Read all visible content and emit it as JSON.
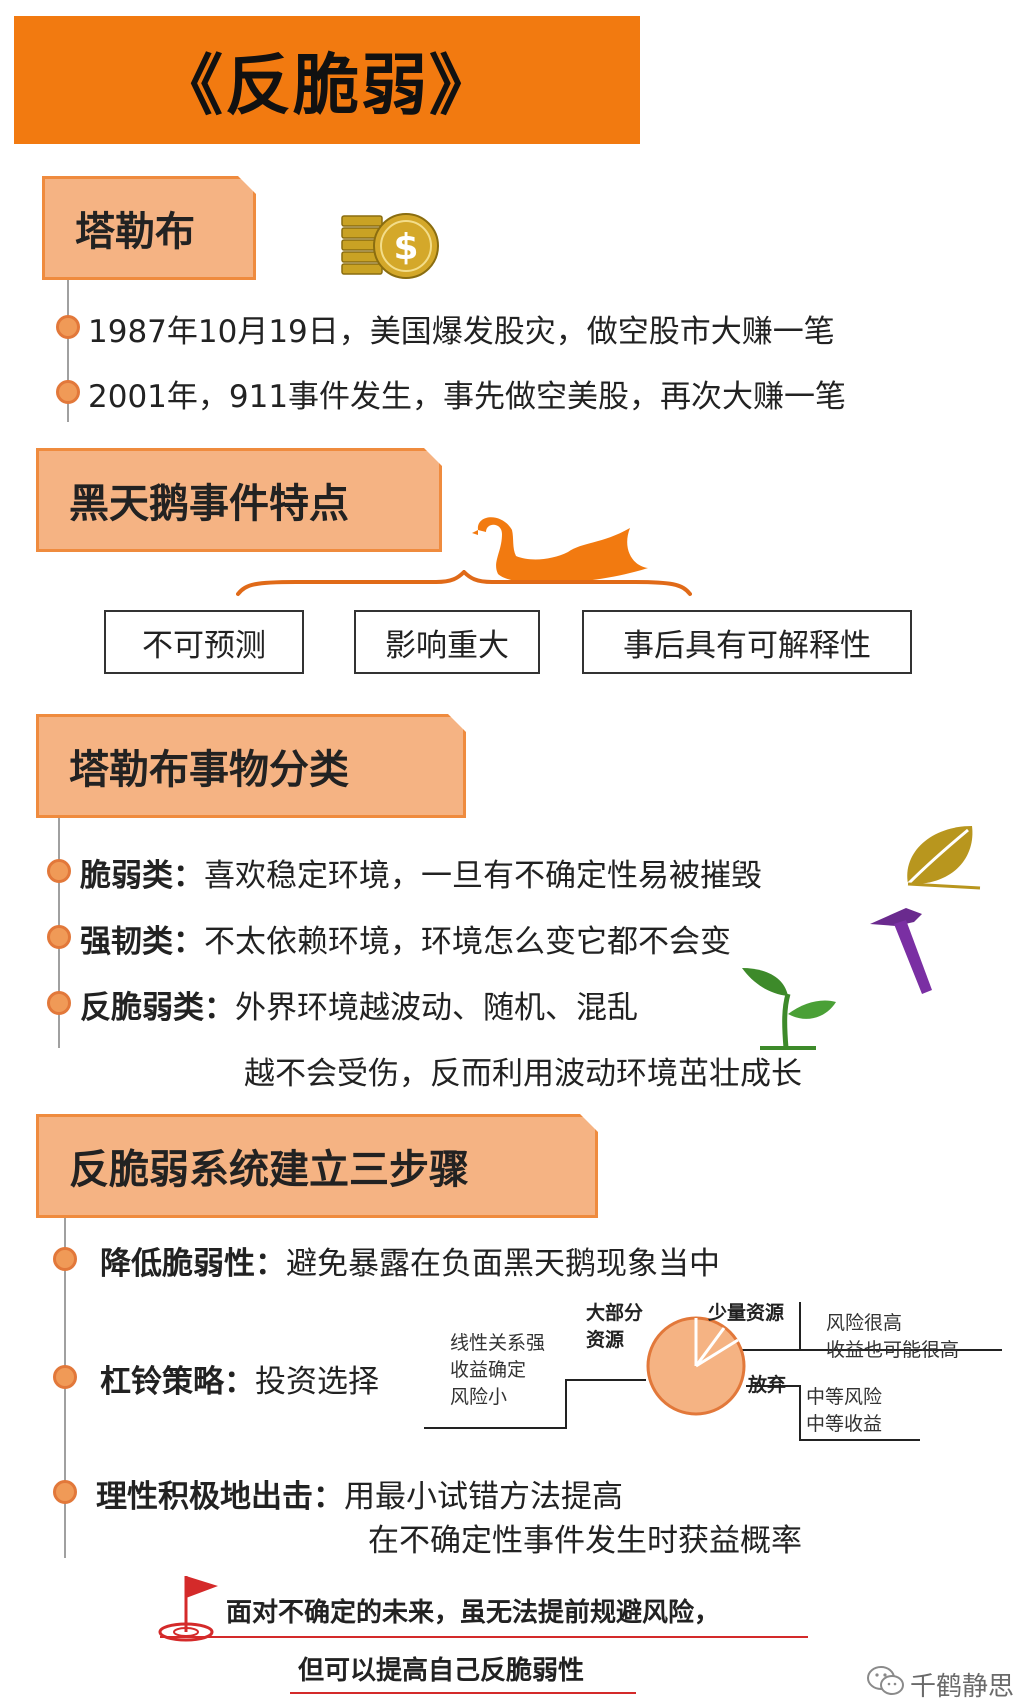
{
  "title": "《反脆弱》",
  "section1": {
    "header": "塔勒布",
    "items": [
      "1987年10月19日，美国爆发股灾，做空股市大赚一笔",
      "2001年，911事件发生，事先做空美股，再次大赚一笔"
    ]
  },
  "section2": {
    "header": "黑天鹅事件特点",
    "boxes": [
      "不可预测",
      "影响重大",
      "事后具有可解释性"
    ]
  },
  "section3": {
    "header": "塔勒布事物分类",
    "items": [
      {
        "label": "脆弱类：",
        "text": "喜欢稳定环境，一旦有不确定性易被摧毁"
      },
      {
        "label": "强韧类：",
        "text": "不太依赖环境，环境怎么变它都不会变"
      },
      {
        "label": "反脆弱类：",
        "text": "外界环境越波动、随机、混乱",
        "text2": "越不会受伤，反而利用波动环境茁壮成长"
      }
    ]
  },
  "section4": {
    "header": "反脆弱系统建立三步骤",
    "step1": {
      "label": "降低脆弱性：",
      "text": "避免暴露在负面黑天鹅现象当中"
    },
    "step2": {
      "label": "杠铃策略：",
      "text": "投资选择",
      "diagram": {
        "left_note": [
          "线性关系强",
          "收益确定",
          "风险小"
        ],
        "major": [
          "大部分",
          "资源"
        ],
        "minor": "少量资源",
        "abandon": "放弃",
        "high_note": [
          "风险很高",
          "收益也可能很高"
        ],
        "mid_note": [
          "中等风险",
          "中等收益"
        ]
      }
    },
    "step3": {
      "label": "理性积极地出击：",
      "text": "用最小试错方法提高",
      "text2": "在不确定性事件发生时获益概率"
    }
  },
  "footer": {
    "line1": "面对不确定的未来，虽无法提前规避风险，",
    "line2": "但可以提高自己反脆弱性"
  },
  "watermark": "千鹤静思",
  "colors": {
    "banner": "#f27a10",
    "header_fill": "#f5b383",
    "header_border": "#ef8b3e",
    "dot": "#f09a57",
    "footer_line": "#d42a2a"
  },
  "icons": [
    "coins-dollar-icon",
    "swan-icon",
    "leaf-icon",
    "hammer-icon",
    "sprout-icon",
    "flag-icon",
    "wechat-icon"
  ]
}
